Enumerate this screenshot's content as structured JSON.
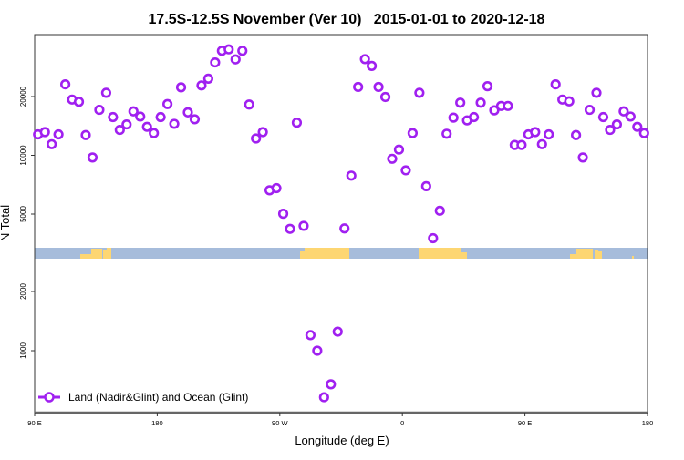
{
  "chart_data": {
    "type": "scatter",
    "title": "17.5S-12.5S November (Ver 10)   2015-01-01 to 2020-12-18",
    "xlabel": "Longitude (deg E)",
    "ylabel": "N Total",
    "y_scale": "log (broken axis)",
    "upper_yticks": [
      5000,
      10000,
      20000
    ],
    "lower_yticks": [
      1000,
      2000
    ],
    "xticks": [
      {
        "value": 90,
        "label": "90 E"
      },
      {
        "value": 180,
        "label": "180"
      },
      {
        "value": 270,
        "label": "90 W"
      },
      {
        "value": 360,
        "label": "0"
      },
      {
        "value": 450,
        "label": "90 E"
      },
      {
        "value": 540,
        "label": "180"
      }
    ],
    "xlim": [
      90,
      540
    ],
    "x_note": "unwrapped longitude, degrees east starting at 90E",
    "legend": {
      "label": "Land (Nadir&Glint) and Ocean (Glint)",
      "position": "bottom-left"
    },
    "series": [
      {
        "name": "Land (Nadir&Glint) and Ocean (Glint)",
        "color": "#a020f0",
        "x": [
          92.5,
          97.5,
          102.5,
          107.5,
          112.5,
          117.5,
          122.5,
          127.5,
          132.5,
          137.5,
          142.5,
          147.5,
          152.5,
          157.5,
          162.5,
          167.5,
          172.5,
          177.5,
          182.5,
          187.5,
          192.5,
          197.5,
          202.5,
          207.5,
          212.5,
          217.5,
          222.5,
          227.5,
          232.5,
          237.5,
          242.5,
          247.5,
          252.5,
          257.5,
          262.5,
          267.5,
          272.5,
          277.5,
          282.5,
          287.5,
          292.5,
          297.5,
          302.5,
          307.5,
          312.5,
          317.5,
          322.5,
          327.5,
          332.5,
          337.5,
          342.5,
          347.5,
          352.5,
          357.5,
          362.5,
          367.5,
          372.5,
          377.5,
          382.5,
          387.5,
          392.5,
          397.5,
          402.5,
          407.5,
          412.5,
          417.5,
          422.5,
          427.5,
          432.5,
          437.5,
          442.5,
          447.5,
          452.5,
          457.5,
          462.5,
          467.5,
          472.5,
          477.5,
          482.5,
          487.5,
          492.5,
          497.5,
          502.5,
          507.5,
          512.5,
          517.5,
          522.5,
          527.5,
          532.5,
          537.5
        ],
        "y": [
          12800,
          13150,
          11400,
          12800,
          23100,
          19300,
          18800,
          12700,
          9750,
          17100,
          20900,
          15700,
          13500,
          14400,
          16800,
          15800,
          14000,
          13000,
          15700,
          18300,
          14500,
          22300,
          16600,
          15300,
          22800,
          24700,
          29900,
          34300,
          34900,
          31000,
          34300,
          18200,
          12200,
          13150,
          6620,
          6790,
          5020,
          4200,
          14700,
          4350,
          1200,
          1000,
          580,
          675,
          1250,
          4220,
          7870,
          22400,
          31100,
          28700,
          22400,
          19900,
          9600,
          10700,
          8380,
          13000,
          20900,
          6950,
          3760,
          5200,
          12900,
          15600,
          18600,
          15100,
          15700,
          18600,
          22600,
          17000,
          17900,
          17900,
          11300,
          11300,
          12800,
          13150,
          11400,
          12800,
          23100,
          19300,
          18900,
          12700,
          9750,
          17100,
          20900,
          15700,
          13500,
          14400,
          16800,
          15800,
          14000,
          13000
        ]
      }
    ],
    "land_mask_colors": {
      "ocean": "#a6bcdb",
      "land": "#fdd672"
    }
  }
}
